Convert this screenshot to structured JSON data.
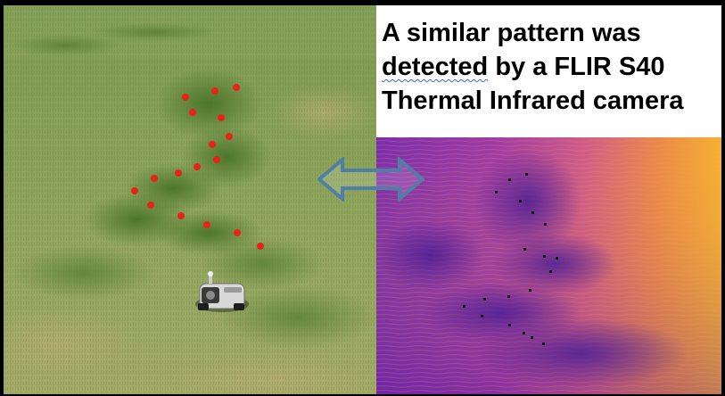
{
  "caption": {
    "line1": "A similar pattern was",
    "line2_word1": "detected",
    "line2_rest": " by a FLIR S40",
    "line3": "Thermal Infrared camera"
  },
  "colors": {
    "red_marker": "#e8231c",
    "black_marker": "#111111",
    "arrow": "#4f7fa6",
    "grass_light": "#8fa25a",
    "grass_dark": "#4f7a2a",
    "thermal_purple": "#7a2aa8",
    "thermal_orange": "#f29b2a"
  },
  "icons": {
    "arrow": "double-headed-arrow-icon"
  }
}
